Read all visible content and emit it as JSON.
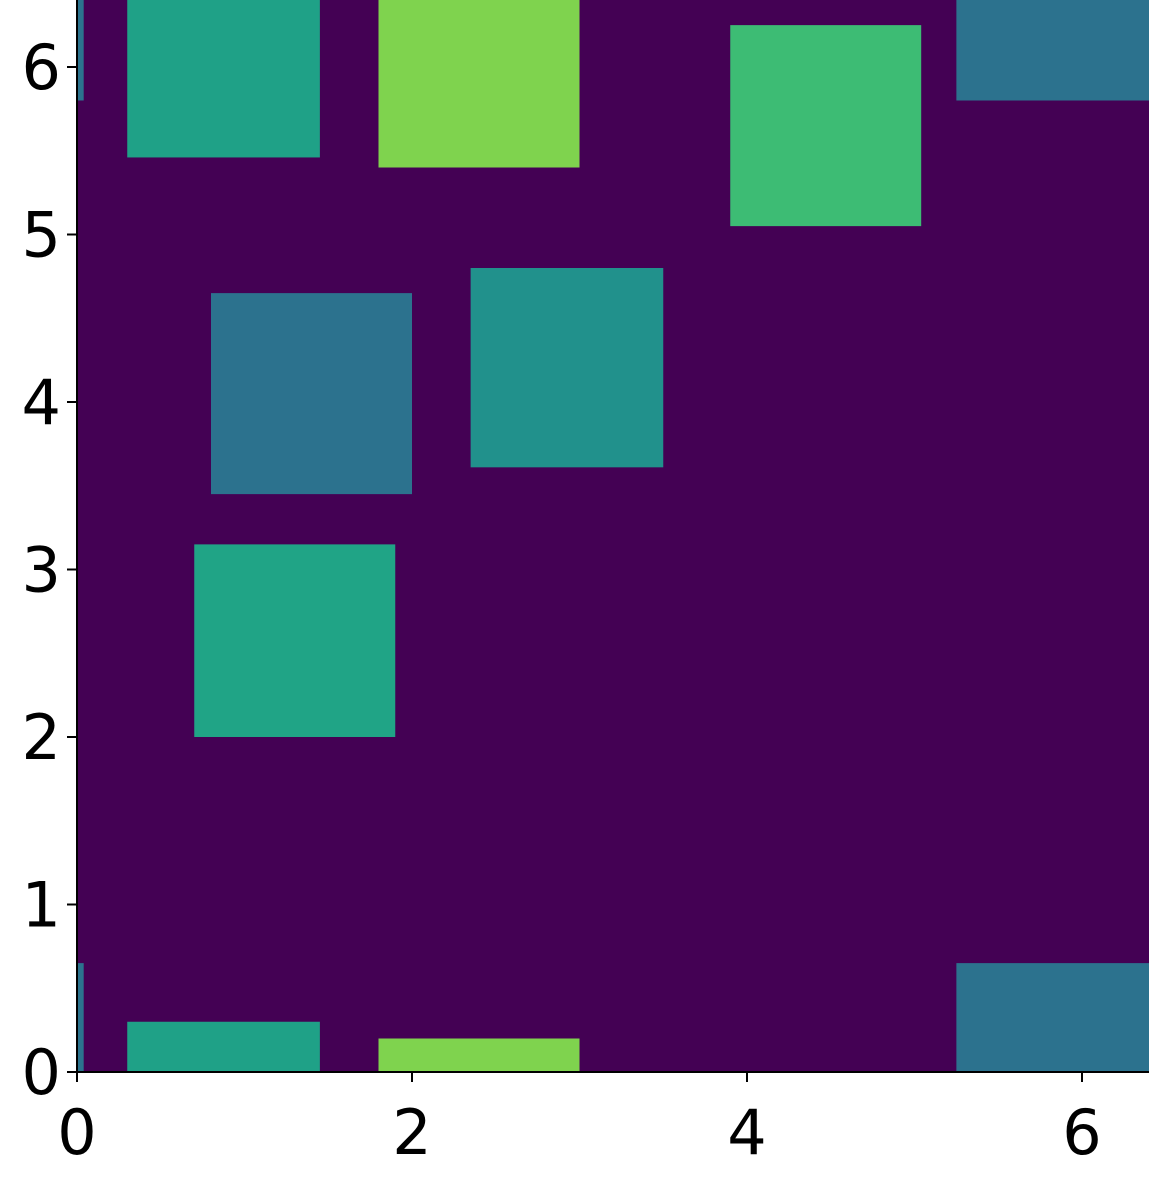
{
  "chart_data": {
    "type": "rectangles",
    "background": "#440154",
    "xlim": [
      0,
      6.4
    ],
    "ylim": [
      0,
      6.4
    ],
    "xticks": [
      0,
      2,
      4,
      6
    ],
    "yticks": [
      0,
      1,
      2,
      3,
      4,
      5,
      6
    ],
    "rects": [
      {
        "x": [
          0.3,
          1.45
        ],
        "y": [
          5.46,
          6.4
        ],
        "color": "#1fa187"
      },
      {
        "x": [
          0.3,
          1.45
        ],
        "y": [
          0,
          0.3
        ],
        "color": "#1fa187"
      },
      {
        "x": [
          1.8,
          3.0
        ],
        "y": [
          5.4,
          6.4
        ],
        "color": "#7fd34e"
      },
      {
        "x": [
          1.8,
          3.0
        ],
        "y": [
          0,
          0.2
        ],
        "color": "#7fd34e"
      },
      {
        "x": [
          3.9,
          5.04
        ],
        "y": [
          5.05,
          6.25
        ],
        "color": "#3dbc74"
      },
      {
        "x": [
          5.25,
          6.4
        ],
        "y": [
          5.8,
          6.4
        ],
        "color": "#2c728e"
      },
      {
        "x": [
          5.25,
          6.4
        ],
        "y": [
          0,
          0.65
        ],
        "color": "#2c728e"
      },
      {
        "x": [
          0,
          0.04
        ],
        "y": [
          5.8,
          6.4
        ],
        "color": "#2c728e"
      },
      {
        "x": [
          0,
          0.04
        ],
        "y": [
          0,
          0.65
        ],
        "color": "#2c728e"
      },
      {
        "x": [
          0.8,
          2.0
        ],
        "y": [
          3.45,
          4.65
        ],
        "color": "#2c728e"
      },
      {
        "x": [
          2.35,
          3.5
        ],
        "y": [
          3.61,
          4.8
        ],
        "color": "#21918c"
      },
      {
        "x": [
          0.7,
          1.9
        ],
        "y": [
          2.0,
          3.15
        ],
        "color": "#20a486"
      }
    ]
  }
}
